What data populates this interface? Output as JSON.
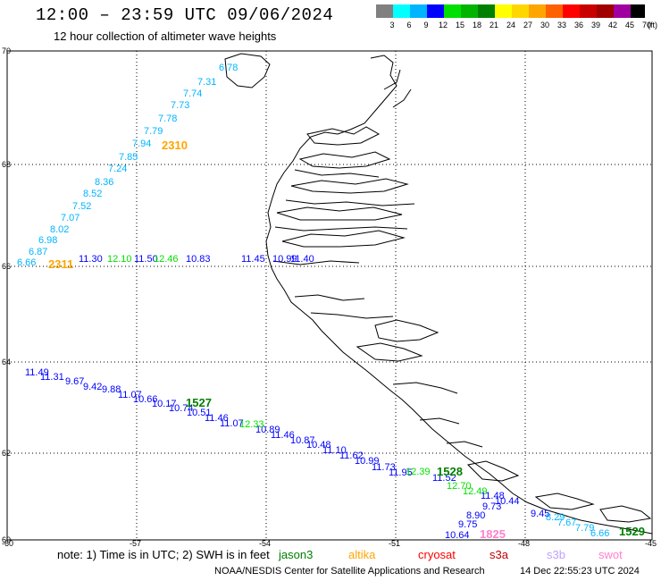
{
  "header": {
    "title": "12:00 – 23:59 UTC 09/06/2024",
    "subtitle": "12 hour collection of altimeter wave heights"
  },
  "legend": {
    "labels": [
      "3",
      "6",
      "9",
      "12",
      "15",
      "18",
      "21",
      "24",
      "27",
      "30",
      "33",
      "36",
      "39",
      "42",
      "45",
      "70"
    ],
    "unit": "(ft)",
    "colors": [
      "#808080",
      "#00ffff",
      "#00b4ff",
      "#0000ff",
      "#00e000",
      "#00b400",
      "#008000",
      "#ffff00",
      "#ffd700",
      "#ffa500",
      "#ff6000",
      "#ff0000",
      "#c80000",
      "#a00000",
      "#a000a0",
      "#000000"
    ]
  },
  "axes": {
    "lat_labels": [
      "70",
      "68",
      "66",
      "64",
      "62",
      "60"
    ],
    "lon_labels": [
      "-60",
      "-57",
      "-54",
      "-51",
      "-48",
      "-45"
    ]
  },
  "tracks": [
    {
      "color": "#00b4ff",
      "values": [
        "6.78",
        "7.31",
        "7.74",
        "7.73",
        "7.78",
        "7.79",
        "7.94",
        "7.85",
        "7.24",
        "8.36",
        "8.52",
        "7.52",
        "7.07",
        "8.02",
        "6.98",
        "6.87",
        "6.66"
      ]
    },
    {
      "color": "#0000ff",
      "values": [
        "11.30",
        "11.50",
        "10.83",
        "11.45",
        "10.99",
        "11.40"
      ]
    },
    {
      "color": "#00e000",
      "values": [
        "12.10",
        "12.46"
      ]
    },
    {
      "color": "#0000ff",
      "values": [
        "11.49",
        "11.31",
        "9.67",
        "9.42",
        "9.88",
        "11.07",
        "10.66",
        "10.17",
        "10.74",
        "10.51",
        "11.46",
        "11.07",
        "10.89",
        "11.46",
        "10.87",
        "10.48",
        "11.10",
        "11.62",
        "10.99",
        "11.73",
        "11.95",
        "11.52"
      ]
    },
    {
      "color": "#00e000",
      "values": [
        "12.33",
        "12.39",
        "12.70",
        "12.49"
      ]
    },
    {
      "color": "#0000ff",
      "values": [
        "11.48",
        "10.44",
        "9.73",
        "9.45",
        "8.90",
        "9.75",
        "10.64"
      ]
    },
    {
      "color": "#00b4ff",
      "values": [
        "8.29",
        "7.67",
        "7.79",
        "6.66"
      ]
    }
  ],
  "passes": [
    {
      "label": "2310",
      "color": "#ffa500"
    },
    {
      "label": "2311",
      "color": "#ffa500"
    },
    {
      "label": "1527",
      "color": "#008000"
    },
    {
      "label": "1528",
      "color": "#008000"
    },
    {
      "label": "1825",
      "color": "#ff80d0"
    },
    {
      "label": "1529",
      "color": "#008000"
    }
  ],
  "footer": {
    "note": "note:  1) Time is in UTC;  2) SWH is in feet",
    "satellites": [
      {
        "name": "jason3",
        "color": "#008000"
      },
      {
        "name": "altika",
        "color": "#ffa500"
      },
      {
        "name": "cryosat",
        "color": "#ff0000"
      },
      {
        "name": "s3a",
        "color": "#c00000"
      },
      {
        "name": "s3b",
        "color": "#c0a0ff"
      },
      {
        "name": "swot",
        "color": "#ff80d0"
      }
    ],
    "credit": "NOAA/NESDIS Center for Satellite Applications and Research",
    "timestamp": "14 Dec 22:55:23 UTC 2024"
  }
}
